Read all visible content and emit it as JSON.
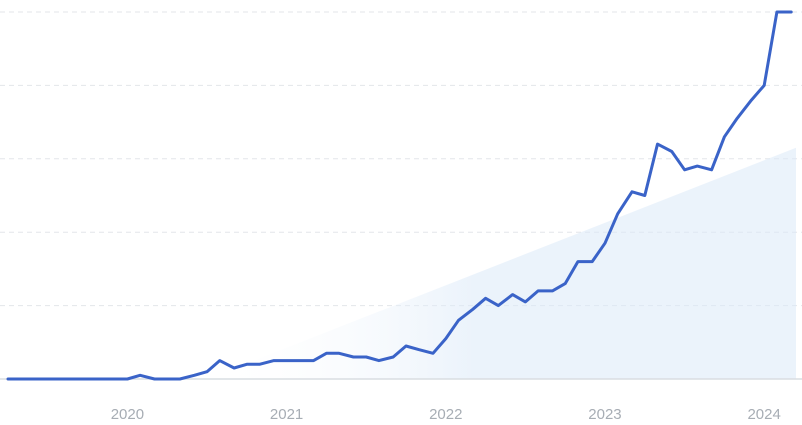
{
  "colors": {
    "line": "#3a63c8",
    "trend_fill": "#dbe9f8",
    "grid": "#e3e6ea",
    "tick_text": "#a7adb4"
  },
  "chart_data": {
    "type": "line",
    "title": "",
    "xlabel": "",
    "ylabel": "",
    "x_unit": "year",
    "xlim": [
      2019.25,
      2024.2
    ],
    "ylim": [
      0,
      100
    ],
    "grid": true,
    "grid_y_values": [
      20,
      40,
      60,
      80,
      100
    ],
    "x_ticks": [
      {
        "value": 2020,
        "label": "2020"
      },
      {
        "value": 2021,
        "label": "2021"
      },
      {
        "value": 2022,
        "label": "2022"
      },
      {
        "value": 2023,
        "label": "2023"
      },
      {
        "value": 2024,
        "label": "2024"
      }
    ],
    "trend": {
      "x": [
        2020.5,
        2024.2
      ],
      "y": [
        0,
        63
      ]
    },
    "series": [
      {
        "x": [
          2019.25,
          2019.33,
          2019.42,
          2019.5,
          2019.58,
          2019.67,
          2019.75,
          2019.83,
          2019.92,
          2020.0,
          2020.08,
          2020.17,
          2020.25,
          2020.33,
          2020.42,
          2020.5,
          2020.58,
          2020.67,
          2020.75,
          2020.83,
          2020.92,
          2021.0,
          2021.08,
          2021.17,
          2021.25,
          2021.33,
          2021.42,
          2021.5,
          2021.58,
          2021.67,
          2021.75,
          2021.83,
          2021.92,
          2022.0,
          2022.08,
          2022.17,
          2022.25,
          2022.33,
          2022.42,
          2022.5,
          2022.58,
          2022.67,
          2022.75,
          2022.83,
          2022.92,
          2023.0,
          2023.08,
          2023.17,
          2023.25,
          2023.33,
          2023.42,
          2023.5,
          2023.58,
          2023.67,
          2023.75,
          2023.83,
          2023.92,
          2024.0,
          2024.08,
          2024.17
        ],
        "y": [
          0,
          0,
          0,
          0,
          0,
          0,
          0,
          0,
          0,
          0,
          1,
          0,
          0,
          0,
          1,
          2,
          5,
          3,
          4,
          4,
          5,
          5,
          5,
          5,
          7,
          7,
          6,
          6,
          5,
          6,
          9,
          8,
          7,
          11,
          16,
          19,
          22,
          20,
          23,
          21,
          24,
          24,
          26,
          32,
          32,
          37,
          45,
          51,
          50,
          64,
          62,
          57,
          58,
          57,
          66,
          71,
          76,
          80,
          100,
          100
        ]
      }
    ]
  }
}
